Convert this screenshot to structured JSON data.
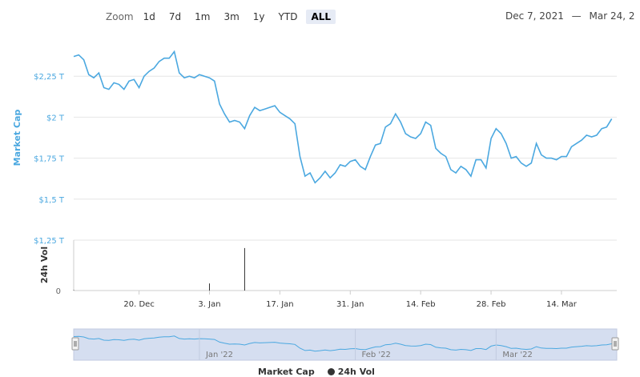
{
  "zoom": {
    "label": "Zoom",
    "buttons": [
      "1d",
      "7d",
      "1m",
      "3m",
      "1y",
      "YTD",
      "ALL"
    ],
    "active": "ALL"
  },
  "range": {
    "from": "Dec 7, 2021",
    "sep": "—",
    "to": "Mar 24, 2"
  },
  "colors": {
    "line": "#4ba8e0",
    "axis_title": "#4ba8e0",
    "navigator_fill": "#d5def0",
    "volume": "#333333"
  },
  "legend": {
    "market_cap": "Market Cap",
    "volume": "24h Vol"
  },
  "navigator_labels": [
    "Jan '22",
    "Feb '22",
    "Mar '22"
  ],
  "chart_data": [
    {
      "type": "line",
      "ylabel": "Market Cap",
      "ylim": [
        1.25,
        2.5
      ],
      "y_ticks": [
        {
          "value": 2.25,
          "label": "$2,25 T"
        },
        {
          "value": 2.0,
          "label": "$2 T"
        },
        {
          "value": 1.75,
          "label": "$1,75 T"
        },
        {
          "value": 1.5,
          "label": "$1,5 T"
        },
        {
          "value": 1.25,
          "label": "$1,25 T"
        }
      ],
      "x_ticks": [
        {
          "date": "2021-12-20",
          "label": "20. Dec"
        },
        {
          "date": "2022-01-03",
          "label": "3. Jan"
        },
        {
          "date": "2022-01-17",
          "label": "17. Jan"
        },
        {
          "date": "2022-01-31",
          "label": "31. Jan"
        },
        {
          "date": "2022-02-14",
          "label": "14. Feb"
        },
        {
          "date": "2022-02-28",
          "label": "28. Feb"
        },
        {
          "date": "2022-03-14",
          "label": "14. Mar"
        }
      ],
      "x_range": [
        "2021-12-07",
        "2022-03-25"
      ],
      "series": [
        {
          "points": [
            [
              "2021-12-07",
              2.37
            ],
            [
              "2021-12-08",
              2.38
            ],
            [
              "2021-12-09",
              2.35
            ],
            [
              "2021-12-10",
              2.26
            ],
            [
              "2021-12-11",
              2.24
            ],
            [
              "2021-12-12",
              2.27
            ],
            [
              "2021-12-13",
              2.18
            ],
            [
              "2021-12-14",
              2.17
            ],
            [
              "2021-12-15",
              2.21
            ],
            [
              "2021-12-16",
              2.2
            ],
            [
              "2021-12-17",
              2.17
            ],
            [
              "2021-12-18",
              2.22
            ],
            [
              "2021-12-19",
              2.23
            ],
            [
              "2021-12-20",
              2.18
            ],
            [
              "2021-12-21",
              2.25
            ],
            [
              "2021-12-22",
              2.28
            ],
            [
              "2021-12-23",
              2.3
            ],
            [
              "2021-12-24",
              2.34
            ],
            [
              "2021-12-25",
              2.36
            ],
            [
              "2021-12-26",
              2.36
            ],
            [
              "2021-12-27",
              2.4
            ],
            [
              "2021-12-28",
              2.27
            ],
            [
              "2021-12-29",
              2.24
            ],
            [
              "2021-12-30",
              2.25
            ],
            [
              "2021-12-31",
              2.24
            ],
            [
              "2022-01-01",
              2.26
            ],
            [
              "2022-01-02",
              2.25
            ],
            [
              "2022-01-03",
              2.24
            ],
            [
              "2022-01-04",
              2.22
            ],
            [
              "2022-01-05",
              2.08
            ],
            [
              "2022-01-06",
              2.02
            ],
            [
              "2022-01-07",
              1.97
            ],
            [
              "2022-01-08",
              1.98
            ],
            [
              "2022-01-09",
              1.97
            ],
            [
              "2022-01-10",
              1.93
            ],
            [
              "2022-01-11",
              2.01
            ],
            [
              "2022-01-12",
              2.06
            ],
            [
              "2022-01-13",
              2.04
            ],
            [
              "2022-01-14",
              2.05
            ],
            [
              "2022-01-15",
              2.06
            ],
            [
              "2022-01-16",
              2.07
            ],
            [
              "2022-01-17",
              2.03
            ],
            [
              "2022-01-18",
              2.01
            ],
            [
              "2022-01-19",
              1.99
            ],
            [
              "2022-01-20",
              1.96
            ],
            [
              "2022-01-21",
              1.76
            ],
            [
              "2022-01-22",
              1.64
            ],
            [
              "2022-01-23",
              1.66
            ],
            [
              "2022-01-24",
              1.6
            ],
            [
              "2022-01-25",
              1.63
            ],
            [
              "2022-01-26",
              1.67
            ],
            [
              "2022-01-27",
              1.63
            ],
            [
              "2022-01-28",
              1.66
            ],
            [
              "2022-01-29",
              1.71
            ],
            [
              "2022-01-30",
              1.7
            ],
            [
              "2022-01-31",
              1.73
            ],
            [
              "2022-02-01",
              1.74
            ],
            [
              "2022-02-02",
              1.7
            ],
            [
              "2022-02-03",
              1.68
            ],
            [
              "2022-02-04",
              1.76
            ],
            [
              "2022-02-05",
              1.83
            ],
            [
              "2022-02-06",
              1.84
            ],
            [
              "2022-02-07",
              1.94
            ],
            [
              "2022-02-08",
              1.96
            ],
            [
              "2022-02-09",
              2.02
            ],
            [
              "2022-02-10",
              1.97
            ],
            [
              "2022-02-11",
              1.9
            ],
            [
              "2022-02-12",
              1.88
            ],
            [
              "2022-02-13",
              1.87
            ],
            [
              "2022-02-14",
              1.9
            ],
            [
              "2022-02-15",
              1.97
            ],
            [
              "2022-02-16",
              1.95
            ],
            [
              "2022-02-17",
              1.81
            ],
            [
              "2022-02-18",
              1.78
            ],
            [
              "2022-02-19",
              1.76
            ],
            [
              "2022-02-20",
              1.68
            ],
            [
              "2022-02-21",
              1.66
            ],
            [
              "2022-02-22",
              1.7
            ],
            [
              "2022-02-23",
              1.68
            ],
            [
              "2022-02-24",
              1.64
            ],
            [
              "2022-02-25",
              1.74
            ],
            [
              "2022-02-26",
              1.74
            ],
            [
              "2022-02-27",
              1.69
            ],
            [
              "2022-02-28",
              1.87
            ],
            [
              "2022-03-01",
              1.93
            ],
            [
              "2022-03-02",
              1.9
            ],
            [
              "2022-03-03",
              1.84
            ],
            [
              "2022-03-04",
              1.75
            ],
            [
              "2022-03-05",
              1.76
            ],
            [
              "2022-03-06",
              1.72
            ],
            [
              "2022-03-07",
              1.7
            ],
            [
              "2022-03-08",
              1.72
            ],
            [
              "2022-03-09",
              1.84
            ],
            [
              "2022-03-10",
              1.77
            ],
            [
              "2022-03-11",
              1.75
            ],
            [
              "2022-03-12",
              1.75
            ],
            [
              "2022-03-13",
              1.74
            ],
            [
              "2022-03-14",
              1.76
            ],
            [
              "2022-03-15",
              1.76
            ],
            [
              "2022-03-16",
              1.82
            ],
            [
              "2022-03-17",
              1.84
            ],
            [
              "2022-03-18",
              1.86
            ],
            [
              "2022-03-19",
              1.89
            ],
            [
              "2022-03-20",
              1.88
            ],
            [
              "2022-03-21",
              1.89
            ],
            [
              "2022-03-22",
              1.93
            ],
            [
              "2022-03-23",
              1.94
            ],
            [
              "2022-03-24",
              1.99
            ]
          ]
        }
      ]
    },
    {
      "type": "bar",
      "ylabel": "24h Vol",
      "y_ticks": [
        {
          "value": 0,
          "label": "0"
        }
      ],
      "ylim": [
        0,
        1
      ],
      "bars": [
        {
          "date": "2021-12-07",
          "value": 0.01
        },
        {
          "date": "2022-01-03",
          "value": 0.15
        },
        {
          "date": "2022-01-10",
          "value": 0.9
        }
      ]
    }
  ]
}
